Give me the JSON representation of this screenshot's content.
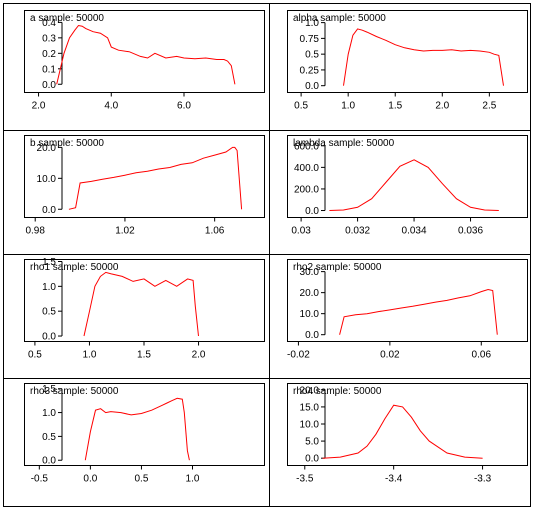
{
  "chart_data": [
    {
      "type": "line",
      "title": "a sample: 50000",
      "xlim": [
        1.6,
        8.2
      ],
      "ylim": [
        -0.05,
        0.48
      ],
      "xticks": [
        2.0,
        4.0,
        6.0
      ],
      "xtick_labels": [
        "2.0",
        "4.0",
        "6.0"
      ],
      "yticks": [
        0.0,
        0.1,
        0.2,
        0.3,
        0.4
      ],
      "ytick_labels": [
        "0.0",
        "0.1",
        "0.2",
        "0.3",
        "0.4"
      ],
      "x": [
        2.5,
        2.7,
        2.85,
        3.0,
        3.1,
        3.2,
        3.3,
        3.5,
        3.7,
        3.9,
        4.0,
        4.2,
        4.5,
        4.8,
        5.0,
        5.2,
        5.5,
        5.8,
        6.0,
        6.3,
        6.6,
        6.9,
        7.1,
        7.2,
        7.3,
        7.4
      ],
      "y": [
        0.0,
        0.2,
        0.3,
        0.35,
        0.38,
        0.375,
        0.36,
        0.34,
        0.33,
        0.3,
        0.24,
        0.22,
        0.21,
        0.18,
        0.17,
        0.2,
        0.17,
        0.18,
        0.17,
        0.165,
        0.17,
        0.16,
        0.16,
        0.15,
        0.12,
        0.0
      ]
    },
    {
      "type": "line",
      "title": "alpha sample: 50000",
      "xlim": [
        0.35,
        2.9
      ],
      "ylim": [
        -0.1,
        1.2
      ],
      "xticks": [
        0.5,
        1.0,
        1.5,
        2.0,
        2.5
      ],
      "xtick_labels": [
        "0.5",
        "1.0",
        "1.5",
        "2.0",
        "2.5"
      ],
      "yticks": [
        0.0,
        0.25,
        0.5,
        0.75,
        1.0
      ],
      "ytick_labels": [
        "0.0",
        "0.25",
        "0.5",
        "0.75",
        "1.0"
      ],
      "x": [
        0.95,
        1.0,
        1.05,
        1.1,
        1.15,
        1.2,
        1.3,
        1.4,
        1.5,
        1.6,
        1.7,
        1.8,
        1.9,
        2.0,
        2.1,
        2.2,
        2.3,
        2.4,
        2.5,
        2.55,
        2.6,
        2.65
      ],
      "y": [
        0.0,
        0.5,
        0.8,
        0.9,
        0.88,
        0.85,
        0.78,
        0.72,
        0.65,
        0.6,
        0.57,
        0.55,
        0.56,
        0.56,
        0.57,
        0.55,
        0.56,
        0.55,
        0.53,
        0.5,
        0.48,
        0.0
      ]
    },
    {
      "type": "line",
      "title": "b sample: 50000",
      "xlim": [
        0.975,
        1.082
      ],
      "ylim": [
        -2.5,
        24
      ],
      "xticks": [
        0.98,
        1.02,
        1.06
      ],
      "xtick_labels": [
        "0.98",
        "1.02",
        "1.06"
      ],
      "yticks": [
        0.0,
        10.0,
        20.0
      ],
      "ytick_labels": [
        "0.0",
        "10.0",
        "20.0"
      ],
      "x": [
        0.995,
        0.998,
        1.0,
        1.005,
        1.01,
        1.015,
        1.02,
        1.025,
        1.03,
        1.035,
        1.04,
        1.045,
        1.05,
        1.055,
        1.06,
        1.065,
        1.068,
        1.069,
        1.07,
        1.072
      ],
      "y": [
        0.0,
        0.5,
        8.5,
        9.0,
        9.7,
        10.3,
        11.0,
        11.8,
        12.3,
        13.0,
        13.5,
        14.5,
        15.0,
        16.5,
        17.5,
        18.5,
        20.0,
        20.0,
        19.0,
        0.0
      ]
    },
    {
      "type": "line",
      "title": "lambda sample: 50000",
      "xlim": [
        0.0295,
        0.038
      ],
      "ylim": [
        -60,
        700
      ],
      "xticks": [
        0.03,
        0.032,
        0.034,
        0.036
      ],
      "xtick_labels": [
        "0.03",
        "0.032",
        "0.034",
        "0.036"
      ],
      "yticks": [
        0.0,
        200.0,
        400.0,
        600.0
      ],
      "ytick_labels": [
        "0.0",
        "200.0",
        "400.0",
        "600.0"
      ],
      "x": [
        0.031,
        0.0315,
        0.032,
        0.0325,
        0.033,
        0.0335,
        0.034,
        0.0345,
        0.035,
        0.0355,
        0.036,
        0.0365,
        0.037
      ],
      "y": [
        0.0,
        5.0,
        30.0,
        110.0,
        260.0,
        410.0,
        470.0,
        400.0,
        250.0,
        110.0,
        30.0,
        5.0,
        0.0
      ]
    },
    {
      "type": "line",
      "title": "rho1 sample: 50000",
      "xlim": [
        0.4,
        2.6
      ],
      "ylim": [
        -0.1,
        1.55
      ],
      "xticks": [
        0.5,
        1.0,
        1.5,
        2.0
      ],
      "xtick_labels": [
        "0.5",
        "1.0",
        "1.5",
        "2.0"
      ],
      "yticks": [
        0.0,
        0.5,
        1.0,
        1.5
      ],
      "ytick_labels": [
        "0.0",
        "0.5",
        "1.0",
        "1.5"
      ],
      "x": [
        0.95,
        1.0,
        1.05,
        1.1,
        1.15,
        1.2,
        1.3,
        1.4,
        1.5,
        1.6,
        1.7,
        1.8,
        1.9,
        1.95,
        1.97,
        2.0
      ],
      "y": [
        0.0,
        0.5,
        1.0,
        1.2,
        1.28,
        1.25,
        1.2,
        1.1,
        1.15,
        1.0,
        1.12,
        1.0,
        1.15,
        1.12,
        0.6,
        0.0
      ]
    },
    {
      "type": "line",
      "title": "rho2 sample: 50000",
      "xlim": [
        -0.025,
        0.08
      ],
      "ylim": [
        -3,
        36
      ],
      "xticks": [
        -0.02,
        0.02,
        0.06
      ],
      "xtick_labels": [
        "-0.02",
        "0.02",
        "0.06"
      ],
      "yticks": [
        0.0,
        10.0,
        20.0,
        30.0
      ],
      "ytick_labels": [
        "0.0",
        "10.0",
        "20.0",
        "30.0"
      ],
      "x": [
        -0.002,
        0.0,
        0.005,
        0.01,
        0.015,
        0.02,
        0.025,
        0.03,
        0.035,
        0.04,
        0.045,
        0.05,
        0.055,
        0.06,
        0.063,
        0.065,
        0.067
      ],
      "y": [
        0.0,
        8.5,
        9.5,
        10.0,
        11.0,
        11.8,
        12.7,
        13.5,
        14.5,
        15.5,
        16.3,
        17.5,
        18.5,
        20.5,
        21.5,
        21.0,
        0.0
      ]
    },
    {
      "type": "line",
      "title": "rho3 sample: 50000",
      "xlim": [
        -0.65,
        1.7
      ],
      "ylim": [
        -0.1,
        1.62
      ],
      "xticks": [
        -0.5,
        0.0,
        0.5,
        1.0
      ],
      "xtick_labels": [
        "-0.5",
        "0.0",
        "0.5",
        "1.0"
      ],
      "yticks": [
        0.0,
        0.5,
        1.0,
        1.5
      ],
      "ytick_labels": [
        "0.0",
        "0.5",
        "1.0",
        "1.5"
      ],
      "x": [
        -0.05,
        0.0,
        0.05,
        0.1,
        0.15,
        0.2,
        0.3,
        0.4,
        0.5,
        0.6,
        0.7,
        0.75,
        0.8,
        0.85,
        0.9,
        0.92,
        0.95,
        0.97
      ],
      "y": [
        0.0,
        0.6,
        1.05,
        1.08,
        1.0,
        1.02,
        1.0,
        0.95,
        0.98,
        1.05,
        1.15,
        1.2,
        1.25,
        1.3,
        1.28,
        1.0,
        0.2,
        0.0
      ]
    },
    {
      "type": "line",
      "title": "rho4 sample: 50000",
      "xlim": [
        -3.52,
        -3.25
      ],
      "ylim": [
        -2,
        22
      ],
      "xticks": [
        -3.5,
        -3.4,
        -3.3
      ],
      "xtick_labels": [
        "-3.5",
        "-3.4",
        "-3.3"
      ],
      "yticks": [
        0.0,
        5.0,
        10.0,
        15.0,
        20.0
      ],
      "ytick_labels": [
        "0.0",
        "5.0",
        "10.0",
        "15.0",
        "20.0"
      ],
      "x": [
        -3.48,
        -3.46,
        -3.44,
        -3.43,
        -3.42,
        -3.41,
        -3.4,
        -3.39,
        -3.38,
        -3.37,
        -3.36,
        -3.34,
        -3.32,
        -3.3
      ],
      "y": [
        0.0,
        0.3,
        1.5,
        3.5,
        7.0,
        11.5,
        15.5,
        15.0,
        12.0,
        8.0,
        5.0,
        1.5,
        0.3,
        0.0
      ]
    }
  ]
}
